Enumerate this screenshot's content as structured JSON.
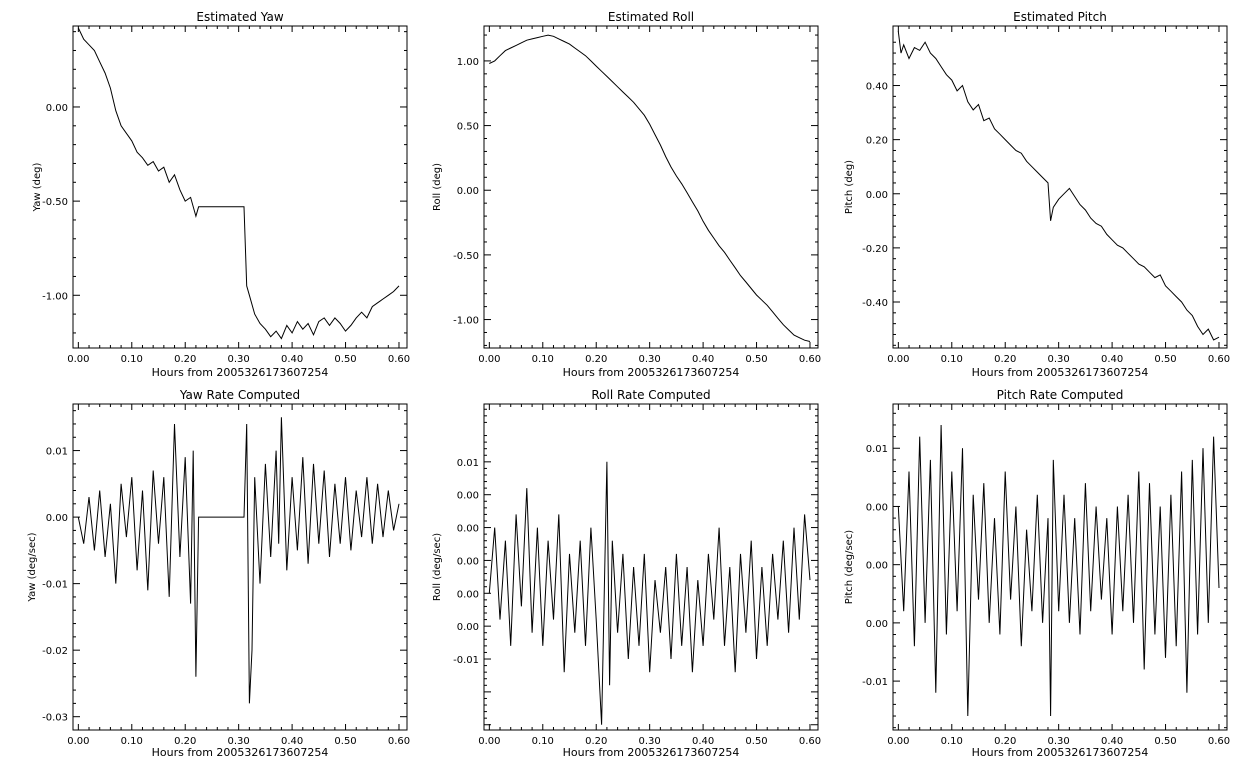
{
  "figure": {
    "panels": [
      {
        "title": "Estimated Yaw",
        "xlabel": "Hours from 2005326173607254",
        "ylabel": "Yaw (deg)",
        "xtick_labels": [
          "0.00",
          "0.10",
          "0.20",
          "0.30",
          "0.40",
          "0.50",
          "0.60"
        ],
        "ytick_labels": [
          "0.00",
          "-0.50",
          "-1.00"
        ]
      },
      {
        "title": "Estimated Roll",
        "xlabel": "Hours from 2005326173607254",
        "ylabel": "Roll (deg)",
        "xtick_labels": [
          "0.00",
          "0.10",
          "0.20",
          "0.30",
          "0.40",
          "0.50",
          "0.60"
        ],
        "ytick_labels": [
          "1.00",
          "0.50",
          "0.00",
          "-0.50",
          "-1.00"
        ]
      },
      {
        "title": "Estimated Pitch",
        "xlabel": "Hours from 2005326173607254",
        "ylabel": "Pitch (deg)",
        "xtick_labels": [
          "0.00",
          "0.10",
          "0.20",
          "0.30",
          "0.40",
          "0.50",
          "0.60"
        ],
        "ytick_labels": [
          "0.40",
          "0.20",
          "0.00",
          "-0.20",
          "-0.40"
        ]
      },
      {
        "title": "Yaw Rate Computed",
        "xlabel": "Hours from 2005326173607254",
        "ylabel": "Yaw (deg/sec)",
        "xtick_labels": [
          "0.00",
          "0.10",
          "0.20",
          "0.30",
          "0.40",
          "0.50",
          "0.60"
        ],
        "ytick_labels": [
          "0.01",
          "0.00",
          "-0.01",
          "-0.02",
          "-0.03"
        ]
      },
      {
        "title": "Roll Rate Computed",
        "xlabel": "Hours from 2005326173607254",
        "ylabel": "Roll (deg/sec)",
        "xtick_labels": [
          "0.00",
          "0.10",
          "0.20",
          "0.30",
          "0.40",
          "0.50",
          "0.60"
        ],
        "ytick_labels": [
          "0.01",
          "0.00",
          "0.00",
          "0.00",
          "0.00",
          "0.00",
          "-0.01"
        ]
      },
      {
        "title": "Pitch Rate Computed",
        "xlabel": "Hours from 2005326173607254",
        "ylabel": "Pitch (deg/sec)",
        "xtick_labels": [
          "0.00",
          "0.10",
          "0.20",
          "0.30",
          "0.40",
          "0.50",
          "0.60"
        ],
        "ytick_labels": [
          "0.01",
          "0.00",
          "0.00",
          "0.00",
          "-0.01"
        ]
      }
    ]
  },
  "chart_data": [
    {
      "type": "line",
      "title": "Estimated Yaw",
      "xlabel": "Hours from 2005326173607254",
      "ylabel": "Yaw (deg)",
      "xlim": [
        -0.01,
        0.615
      ],
      "ylim": [
        -1.28,
        0.43
      ],
      "xticks": [
        0,
        0.1,
        0.2,
        0.3,
        0.4,
        0.5,
        0.6
      ],
      "yticks": [
        0,
        -0.5,
        -1.0
      ],
      "grid": false,
      "series": [
        {
          "x": [
            0.0,
            0.01,
            0.02,
            0.03,
            0.04,
            0.05,
            0.06,
            0.07,
            0.08,
            0.09,
            0.1,
            0.11,
            0.12,
            0.13,
            0.14,
            0.15,
            0.16,
            0.17,
            0.18,
            0.19,
            0.2,
            0.21,
            0.22,
            0.225,
            0.3,
            0.31,
            0.315,
            0.32,
            0.33,
            0.34,
            0.35,
            0.36,
            0.37,
            0.38,
            0.39,
            0.4,
            0.41,
            0.42,
            0.43,
            0.44,
            0.45,
            0.46,
            0.47,
            0.48,
            0.49,
            0.5,
            0.51,
            0.52,
            0.53,
            0.54,
            0.55,
            0.56,
            0.57,
            0.58,
            0.59,
            0.6
          ],
          "y": [
            0.42,
            0.36,
            0.33,
            0.3,
            0.24,
            0.18,
            0.1,
            -0.02,
            -0.1,
            -0.14,
            -0.18,
            -0.24,
            -0.27,
            -0.31,
            -0.29,
            -0.34,
            -0.32,
            -0.4,
            -0.36,
            -0.44,
            -0.5,
            -0.48,
            -0.58,
            -0.53,
            -0.53,
            -0.53,
            -0.95,
            -1.0,
            -1.1,
            -1.15,
            -1.18,
            -1.22,
            -1.19,
            -1.23,
            -1.16,
            -1.2,
            -1.14,
            -1.18,
            -1.15,
            -1.21,
            -1.14,
            -1.12,
            -1.16,
            -1.12,
            -1.15,
            -1.19,
            -1.16,
            -1.12,
            -1.09,
            -1.12,
            -1.06,
            -1.04,
            -1.02,
            -1.0,
            -0.98,
            -0.95
          ]
        }
      ]
    },
    {
      "type": "line",
      "title": "Estimated Roll",
      "xlabel": "Hours from 2005326173607254",
      "ylabel": "Roll (deg)",
      "xlim": [
        -0.01,
        0.615
      ],
      "ylim": [
        -1.22,
        1.27
      ],
      "xticks": [
        0,
        0.1,
        0.2,
        0.3,
        0.4,
        0.5,
        0.6
      ],
      "yticks": [
        1.0,
        0.5,
        0,
        -0.5,
        -1.0
      ],
      "grid": false,
      "series": [
        {
          "x": [
            0.0,
            0.01,
            0.02,
            0.03,
            0.04,
            0.05,
            0.06,
            0.07,
            0.08,
            0.09,
            0.1,
            0.11,
            0.12,
            0.13,
            0.14,
            0.15,
            0.16,
            0.17,
            0.18,
            0.19,
            0.2,
            0.21,
            0.22,
            0.23,
            0.24,
            0.25,
            0.26,
            0.27,
            0.28,
            0.29,
            0.3,
            0.31,
            0.32,
            0.33,
            0.34,
            0.35,
            0.36,
            0.37,
            0.38,
            0.39,
            0.4,
            0.41,
            0.42,
            0.43,
            0.44,
            0.45,
            0.46,
            0.47,
            0.48,
            0.49,
            0.5,
            0.51,
            0.52,
            0.53,
            0.54,
            0.55,
            0.56,
            0.57,
            0.58,
            0.59,
            0.6
          ],
          "y": [
            0.98,
            1.0,
            1.04,
            1.08,
            1.1,
            1.12,
            1.14,
            1.16,
            1.17,
            1.18,
            1.19,
            1.2,
            1.19,
            1.17,
            1.15,
            1.13,
            1.1,
            1.07,
            1.04,
            1.0,
            0.96,
            0.92,
            0.88,
            0.84,
            0.8,
            0.76,
            0.72,
            0.68,
            0.63,
            0.58,
            0.51,
            0.43,
            0.35,
            0.26,
            0.18,
            0.11,
            0.05,
            -0.02,
            -0.09,
            -0.16,
            -0.24,
            -0.31,
            -0.37,
            -0.43,
            -0.48,
            -0.54,
            -0.6,
            -0.66,
            -0.71,
            -0.76,
            -0.81,
            -0.85,
            -0.89,
            -0.94,
            -0.99,
            -1.04,
            -1.08,
            -1.12,
            -1.14,
            -1.16,
            -1.17
          ]
        }
      ]
    },
    {
      "type": "line",
      "title": "Estimated Pitch",
      "xlabel": "Hours from 2005326173607254",
      "ylabel": "Pitch (deg)",
      "xlim": [
        -0.01,
        0.615
      ],
      "ylim": [
        -0.57,
        0.62
      ],
      "xticks": [
        0,
        0.1,
        0.2,
        0.3,
        0.4,
        0.5,
        0.6
      ],
      "yticks": [
        0.4,
        0.2,
        0,
        -0.2,
        -0.4
      ],
      "grid": false,
      "series": [
        {
          "x": [
            0.0,
            0.005,
            0.01,
            0.02,
            0.03,
            0.04,
            0.05,
            0.06,
            0.07,
            0.08,
            0.09,
            0.1,
            0.11,
            0.12,
            0.13,
            0.14,
            0.15,
            0.16,
            0.17,
            0.18,
            0.19,
            0.2,
            0.21,
            0.22,
            0.23,
            0.24,
            0.25,
            0.26,
            0.27,
            0.28,
            0.285,
            0.29,
            0.3,
            0.31,
            0.32,
            0.33,
            0.34,
            0.35,
            0.36,
            0.37,
            0.38,
            0.39,
            0.4,
            0.41,
            0.42,
            0.43,
            0.44,
            0.45,
            0.46,
            0.47,
            0.48,
            0.49,
            0.5,
            0.51,
            0.52,
            0.53,
            0.54,
            0.55,
            0.56,
            0.57,
            0.58,
            0.59,
            0.6
          ],
          "y": [
            0.6,
            0.52,
            0.55,
            0.5,
            0.54,
            0.53,
            0.56,
            0.52,
            0.5,
            0.47,
            0.44,
            0.42,
            0.38,
            0.4,
            0.34,
            0.31,
            0.33,
            0.27,
            0.28,
            0.24,
            0.22,
            0.2,
            0.18,
            0.16,
            0.15,
            0.12,
            0.1,
            0.08,
            0.06,
            0.04,
            -0.1,
            -0.05,
            -0.02,
            0.0,
            0.02,
            -0.01,
            -0.04,
            -0.06,
            -0.09,
            -0.11,
            -0.12,
            -0.15,
            -0.17,
            -0.19,
            -0.2,
            -0.22,
            -0.24,
            -0.26,
            -0.27,
            -0.29,
            -0.31,
            -0.3,
            -0.34,
            -0.36,
            -0.38,
            -0.4,
            -0.43,
            -0.45,
            -0.49,
            -0.52,
            -0.5,
            -0.54,
            -0.53
          ]
        }
      ]
    },
    {
      "type": "line",
      "title": "Yaw Rate Computed",
      "xlabel": "Hours from 2005326173607254",
      "ylabel": "Yaw (deg/sec)",
      "xlim": [
        -0.01,
        0.615
      ],
      "ylim": [
        -0.032,
        0.017
      ],
      "xticks": [
        0,
        0.1,
        0.2,
        0.3,
        0.4,
        0.5,
        0.6
      ],
      "yticks": [
        0.01,
        0,
        -0.01,
        -0.02,
        -0.03
      ],
      "grid": false,
      "series": [
        {
          "x": [
            0.0,
            0.01,
            0.02,
            0.03,
            0.04,
            0.05,
            0.06,
            0.07,
            0.08,
            0.09,
            0.1,
            0.11,
            0.12,
            0.13,
            0.14,
            0.15,
            0.16,
            0.17,
            0.18,
            0.19,
            0.2,
            0.21,
            0.215,
            0.22,
            0.225,
            0.31,
            0.315,
            0.32,
            0.325,
            0.33,
            0.34,
            0.35,
            0.36,
            0.37,
            0.375,
            0.38,
            0.39,
            0.4,
            0.41,
            0.42,
            0.43,
            0.44,
            0.45,
            0.46,
            0.47,
            0.48,
            0.49,
            0.5,
            0.51,
            0.52,
            0.53,
            0.54,
            0.55,
            0.56,
            0.57,
            0.58,
            0.59,
            0.6
          ],
          "y": [
            0.0,
            -0.004,
            0.003,
            -0.005,
            0.004,
            -0.006,
            0.002,
            -0.01,
            0.005,
            -0.003,
            0.006,
            -0.008,
            0.004,
            -0.011,
            0.007,
            -0.004,
            0.006,
            -0.012,
            0.014,
            -0.006,
            0.009,
            -0.013,
            0.01,
            -0.024,
            0.0,
            0.0,
            0.014,
            -0.028,
            -0.02,
            0.006,
            -0.01,
            0.008,
            -0.006,
            0.01,
            -0.004,
            0.015,
            -0.008,
            0.006,
            -0.005,
            0.009,
            -0.007,
            0.008,
            -0.004,
            0.007,
            -0.006,
            0.005,
            -0.004,
            0.006,
            -0.005,
            0.004,
            -0.003,
            0.006,
            -0.004,
            0.005,
            -0.003,
            0.004,
            -0.002,
            0.002
          ]
        }
      ]
    },
    {
      "type": "line",
      "title": "Roll Rate Computed",
      "xlabel": "Hours from 2005326173607254",
      "ylabel": "Roll (deg/sec)",
      "xlim": [
        -0.01,
        0.615
      ],
      "ylim": [
        -0.0104,
        0.0144
      ],
      "xticks": [
        0,
        0.1,
        0.2,
        0.3,
        0.4,
        0.5,
        0.6
      ],
      "yticks": [
        0.01,
        0.0075,
        0.005,
        0.0025,
        0,
        -0.0025,
        -0.005,
        -0.0075,
        -0.01
      ],
      "grid": false,
      "series": [
        {
          "x": [
            0.0,
            0.01,
            0.02,
            0.03,
            0.04,
            0.05,
            0.06,
            0.07,
            0.08,
            0.09,
            0.1,
            0.11,
            0.12,
            0.13,
            0.14,
            0.15,
            0.16,
            0.17,
            0.18,
            0.19,
            0.2,
            0.21,
            0.22,
            0.225,
            0.23,
            0.24,
            0.25,
            0.26,
            0.27,
            0.28,
            0.29,
            0.3,
            0.31,
            0.32,
            0.33,
            0.34,
            0.35,
            0.36,
            0.37,
            0.38,
            0.39,
            0.4,
            0.41,
            0.42,
            0.43,
            0.44,
            0.45,
            0.46,
            0.47,
            0.48,
            0.49,
            0.5,
            0.51,
            0.52,
            0.53,
            0.54,
            0.55,
            0.56,
            0.57,
            0.58,
            0.59,
            0.6
          ],
          "y": [
            0.0,
            0.005,
            -0.002,
            0.004,
            -0.004,
            0.006,
            -0.001,
            0.008,
            -0.003,
            0.005,
            -0.004,
            0.004,
            -0.002,
            0.006,
            -0.006,
            0.003,
            -0.003,
            0.004,
            -0.004,
            0.005,
            -0.002,
            -0.01,
            0.01,
            -0.007,
            0.004,
            -0.003,
            0.003,
            -0.005,
            0.002,
            -0.004,
            0.003,
            -0.006,
            0.001,
            -0.003,
            0.002,
            -0.005,
            0.003,
            -0.004,
            0.002,
            -0.006,
            0.001,
            -0.004,
            0.003,
            -0.002,
            0.005,
            -0.004,
            0.002,
            -0.006,
            0.003,
            -0.003,
            0.004,
            -0.005,
            0.002,
            -0.004,
            0.003,
            -0.002,
            0.004,
            -0.003,
            0.005,
            -0.002,
            0.006,
            0.001
          ]
        }
      ]
    },
    {
      "type": "line",
      "title": "Pitch Rate Computed",
      "xlabel": "Hours from 2005326173607254",
      "ylabel": "Pitch (deg/sec)",
      "xlim": [
        -0.01,
        0.615
      ],
      "ylim": [
        -0.0142,
        0.0138
      ],
      "xticks": [
        0,
        0.1,
        0.2,
        0.3,
        0.4,
        0.5,
        0.6
      ],
      "yticks": [
        0.01,
        0.005,
        0,
        -0.005,
        -0.01
      ],
      "grid": false,
      "series": [
        {
          "x": [
            0.0,
            0.01,
            0.02,
            0.03,
            0.04,
            0.05,
            0.06,
            0.07,
            0.08,
            0.09,
            0.1,
            0.11,
            0.12,
            0.13,
            0.14,
            0.15,
            0.16,
            0.17,
            0.18,
            0.19,
            0.2,
            0.21,
            0.22,
            0.23,
            0.24,
            0.25,
            0.26,
            0.27,
            0.28,
            0.285,
            0.29,
            0.3,
            0.31,
            0.32,
            0.33,
            0.34,
            0.35,
            0.36,
            0.37,
            0.38,
            0.39,
            0.4,
            0.41,
            0.42,
            0.43,
            0.44,
            0.45,
            0.46,
            0.47,
            0.48,
            0.49,
            0.5,
            0.51,
            0.52,
            0.53,
            0.54,
            0.55,
            0.56,
            0.57,
            0.58,
            0.59,
            0.6
          ],
          "y": [
            0.005,
            -0.004,
            0.008,
            -0.007,
            0.011,
            -0.005,
            0.009,
            -0.011,
            0.012,
            -0.006,
            0.008,
            -0.004,
            0.01,
            -0.013,
            0.006,
            -0.003,
            0.007,
            -0.005,
            0.004,
            -0.006,
            0.008,
            -0.003,
            0.005,
            -0.007,
            0.003,
            -0.004,
            0.006,
            -0.005,
            0.004,
            -0.013,
            0.009,
            -0.004,
            0.006,
            -0.005,
            0.004,
            -0.006,
            0.007,
            -0.004,
            0.005,
            -0.003,
            0.004,
            -0.006,
            0.005,
            -0.004,
            0.006,
            -0.005,
            0.008,
            -0.009,
            0.007,
            -0.006,
            0.005,
            -0.008,
            0.006,
            -0.007,
            0.008,
            -0.011,
            0.009,
            -0.006,
            0.01,
            -0.005,
            0.011,
            -0.002
          ]
        }
      ]
    }
  ]
}
